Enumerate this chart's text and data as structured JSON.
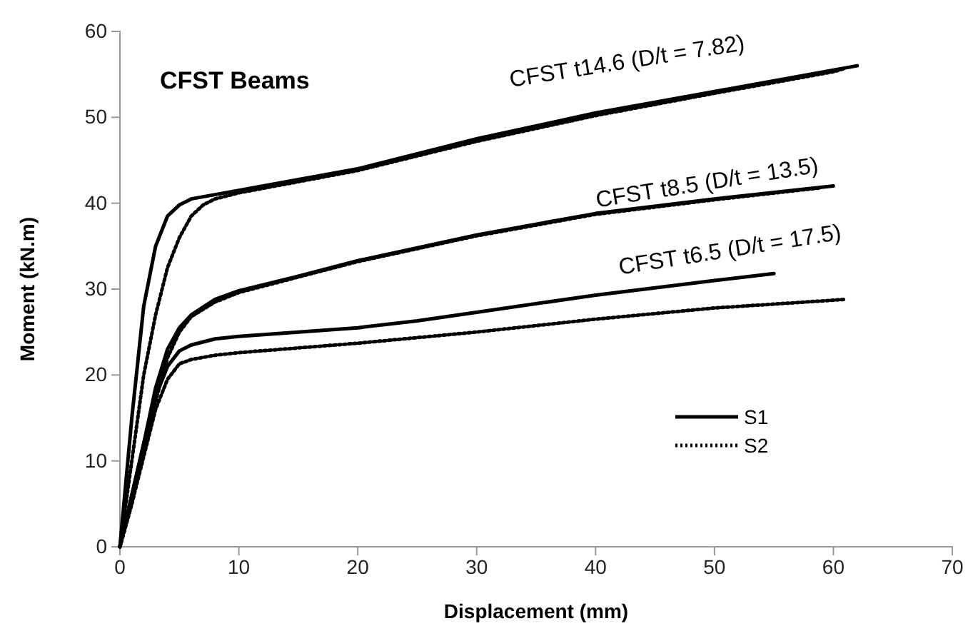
{
  "chart_data": {
    "type": "line",
    "title": "CFST Beams",
    "xlabel": "Displacement (mm)",
    "ylabel": "Moment (kN.m)",
    "xlim": [
      0,
      70
    ],
    "xticks": [
      0,
      10,
      20,
      30,
      40,
      50,
      60,
      70
    ],
    "ylim": [
      0,
      60
    ],
    "yticks": [
      0,
      10,
      20,
      30,
      40,
      50,
      60
    ],
    "grid": false,
    "legend": "right",
    "marker": "none",
    "series": [
      {
        "name": "S1",
        "color": "#000000",
        "line_style": "solid",
        "x": [
          0,
          1,
          2,
          3,
          4,
          5,
          6,
          8,
          10,
          20,
          30,
          40,
          50,
          60,
          62
        ],
        "values": [
          0,
          15,
          28,
          35,
          38.5,
          39.8,
          40.5,
          41,
          41.5,
          44,
          47.5,
          50.5,
          53,
          55.5,
          56
        ]
      },
      {
        "name": "S2",
        "color": "#000000",
        "line_style": "dotted",
        "x": [
          0,
          1,
          2,
          3,
          4,
          5,
          6,
          7,
          8,
          10,
          20,
          30,
          40,
          50,
          60,
          61
        ],
        "values": [
          0,
          10,
          20,
          27,
          32.5,
          36,
          38.5,
          39.8,
          40.5,
          41.2,
          43.8,
          47.2,
          50.2,
          52.8,
          55.3,
          55.7
        ]
      },
      {
        "color": "#000000",
        "line_style": "solid",
        "x": [
          0,
          1,
          2,
          3,
          4,
          5,
          6,
          8,
          10,
          15,
          20,
          30,
          40,
          50,
          60
        ],
        "values": [
          0,
          6,
          12,
          18.5,
          23,
          25.5,
          27,
          28.8,
          29.8,
          31.5,
          33.3,
          36.3,
          38.8,
          40.5,
          42
        ]
      },
      {
        "color": "#000000",
        "line_style": "dotted",
        "x": [
          0,
          1,
          2,
          3,
          4,
          5,
          6,
          8,
          10,
          15,
          20,
          30,
          40,
          50,
          59
        ],
        "values": [
          0,
          5,
          11,
          17,
          22,
          25,
          26.8,
          28.5,
          29.6,
          31.4,
          33.2,
          36.2,
          38.7,
          40.4,
          41.8
        ]
      },
      {
        "color": "#000000",
        "line_style": "solid",
        "x": [
          0,
          1,
          2,
          3,
          4,
          5,
          6,
          8,
          10,
          15,
          20,
          25,
          30,
          40,
          50,
          55
        ],
        "values": [
          0,
          6,
          12,
          17.5,
          21,
          22.8,
          23.5,
          24.2,
          24.5,
          25,
          25.5,
          26.3,
          27.3,
          29.3,
          31,
          31.8
        ]
      },
      {
        "color": "#000000",
        "line_style": "dotted",
        "x": [
          0,
          1,
          2,
          3,
          4,
          5,
          6,
          8,
          10,
          20,
          30,
          40,
          50,
          61
        ],
        "values": [
          0,
          5,
          10.5,
          16,
          19.5,
          21.3,
          21.8,
          22.3,
          22.6,
          23.7,
          25,
          26.5,
          27.8,
          28.8
        ]
      }
    ],
    "annotations": [
      "CFST t14.6 (D/t = 7.82)",
      "CFST t8.5 (D/t = 13.5)",
      "CFST t6.5 (D/t = 17.5)"
    ]
  }
}
